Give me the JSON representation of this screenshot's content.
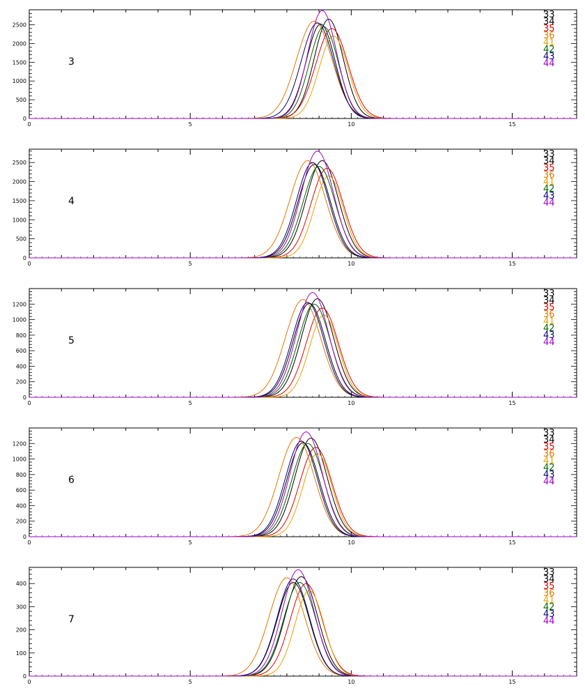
{
  "chart_data": [
    {
      "type": "line",
      "panel_label": "3",
      "xlim": [
        0,
        17
      ],
      "ylim": [
        0,
        2900
      ],
      "x_ticks": [
        0,
        5,
        10,
        15
      ],
      "y_ticks": [
        0,
        500,
        1000,
        1500,
        2000,
        2500
      ],
      "grid": false,
      "legend_placement": "top-right",
      "series": [
        {
          "name": "33",
          "color": "#000000",
          "peak_x": 9.05,
          "peak_y": 2520,
          "width": 0.45
        },
        {
          "name": "34",
          "color": "#000000",
          "peak_x": 9.3,
          "peak_y": 2650,
          "width": 0.45
        },
        {
          "name": "35",
          "color": "#e00000",
          "peak_x": 9.4,
          "peak_y": 2400,
          "width": 0.5
        },
        {
          "name": "36",
          "color": "#e07800",
          "peak_x": 8.85,
          "peak_y": 2600,
          "width": 0.55
        },
        {
          "name": "41",
          "color": "#e8a000",
          "peak_x": 9.45,
          "peak_y": 2200,
          "width": 0.45
        },
        {
          "name": "42",
          "color": "#006400",
          "peak_x": 9.15,
          "peak_y": 2450,
          "width": 0.45
        },
        {
          "name": "43",
          "color": "#00006e",
          "peak_x": 8.95,
          "peak_y": 2550,
          "width": 0.5
        },
        {
          "name": "44",
          "color": "#a000c8",
          "peak_x": 9.1,
          "peak_y": 2880,
          "width": 0.45
        }
      ]
    },
    {
      "type": "line",
      "panel_label": "4",
      "xlim": [
        0,
        17
      ],
      "ylim": [
        0,
        2850
      ],
      "x_ticks": [
        0,
        5,
        10,
        15
      ],
      "y_ticks": [
        0,
        500,
        1000,
        1500,
        2000,
        2500
      ],
      "grid": false,
      "legend_placement": "top-right",
      "series": [
        {
          "name": "33",
          "color": "#000000",
          "peak_x": 8.85,
          "peak_y": 2450,
          "width": 0.5
        },
        {
          "name": "34",
          "color": "#000000",
          "peak_x": 9.1,
          "peak_y": 2550,
          "width": 0.5
        },
        {
          "name": "35",
          "color": "#e00000",
          "peak_x": 9.25,
          "peak_y": 2350,
          "width": 0.5
        },
        {
          "name": "36",
          "color": "#e07800",
          "peak_x": 8.65,
          "peak_y": 2550,
          "width": 0.55
        },
        {
          "name": "41",
          "color": "#e8a000",
          "peak_x": 9.3,
          "peak_y": 2150,
          "width": 0.45
        },
        {
          "name": "42",
          "color": "#006400",
          "peak_x": 9.0,
          "peak_y": 2400,
          "width": 0.5
        },
        {
          "name": "43",
          "color": "#00006e",
          "peak_x": 8.8,
          "peak_y": 2500,
          "width": 0.5
        },
        {
          "name": "44",
          "color": "#a000c8",
          "peak_x": 8.95,
          "peak_y": 2800,
          "width": 0.5
        }
      ]
    },
    {
      "type": "line",
      "panel_label": "5",
      "xlim": [
        0,
        17
      ],
      "ylim": [
        0,
        1400
      ],
      "x_ticks": [
        0,
        5,
        10,
        15
      ],
      "y_ticks": [
        0,
        200,
        400,
        600,
        800,
        1000,
        1200
      ],
      "grid": false,
      "legend_placement": "top-right",
      "series": [
        {
          "name": "33",
          "color": "#000000",
          "peak_x": 8.7,
          "peak_y": 1210,
          "width": 0.5
        },
        {
          "name": "34",
          "color": "#000000",
          "peak_x": 8.95,
          "peak_y": 1270,
          "width": 0.5
        },
        {
          "name": "35",
          "color": "#e00000",
          "peak_x": 9.1,
          "peak_y": 1150,
          "width": 0.5
        },
        {
          "name": "36",
          "color": "#e07800",
          "peak_x": 8.5,
          "peak_y": 1260,
          "width": 0.55
        },
        {
          "name": "41",
          "color": "#e8a000",
          "peak_x": 9.15,
          "peak_y": 1060,
          "width": 0.45
        },
        {
          "name": "42",
          "color": "#006400",
          "peak_x": 8.85,
          "peak_y": 1200,
          "width": 0.5
        },
        {
          "name": "43",
          "color": "#00006e",
          "peak_x": 8.65,
          "peak_y": 1220,
          "width": 0.5
        },
        {
          "name": "44",
          "color": "#a000c8",
          "peak_x": 8.8,
          "peak_y": 1350,
          "width": 0.5
        }
      ]
    },
    {
      "type": "line",
      "panel_label": "6",
      "xlim": [
        0,
        17
      ],
      "ylim": [
        0,
        1400
      ],
      "x_ticks": [
        0,
        5,
        10,
        15
      ],
      "y_ticks": [
        0,
        200,
        400,
        600,
        800,
        1000,
        1200
      ],
      "grid": false,
      "legend_placement": "top-right",
      "series": [
        {
          "name": "33",
          "color": "#000000",
          "peak_x": 8.5,
          "peak_y": 1210,
          "width": 0.5
        },
        {
          "name": "34",
          "color": "#000000",
          "peak_x": 8.75,
          "peak_y": 1270,
          "width": 0.5
        },
        {
          "name": "35",
          "color": "#e00000",
          "peak_x": 8.9,
          "peak_y": 1150,
          "width": 0.5
        },
        {
          "name": "36",
          "color": "#e07800",
          "peak_x": 8.3,
          "peak_y": 1280,
          "width": 0.55
        },
        {
          "name": "41",
          "color": "#e8a000",
          "peak_x": 8.95,
          "peak_y": 1070,
          "width": 0.45
        },
        {
          "name": "42",
          "color": "#006400",
          "peak_x": 8.65,
          "peak_y": 1200,
          "width": 0.5
        },
        {
          "name": "43",
          "color": "#00006e",
          "peak_x": 8.45,
          "peak_y": 1230,
          "width": 0.5
        },
        {
          "name": "44",
          "color": "#a000c8",
          "peak_x": 8.6,
          "peak_y": 1350,
          "width": 0.5
        }
      ]
    },
    {
      "type": "line",
      "panel_label": "7",
      "xlim": [
        0,
        17
      ],
      "ylim": [
        0,
        470
      ],
      "x_ticks": [
        0,
        5,
        10,
        15
      ],
      "y_ticks": [
        0,
        100,
        200,
        300,
        400
      ],
      "grid": false,
      "legend_placement": "top-right",
      "series": [
        {
          "name": "33",
          "color": "#000000",
          "peak_x": 8.2,
          "peak_y": 405,
          "width": 0.5
        },
        {
          "name": "34",
          "color": "#000000",
          "peak_x": 8.45,
          "peak_y": 430,
          "width": 0.5
        },
        {
          "name": "35",
          "color": "#e00000",
          "peak_x": 8.6,
          "peak_y": 400,
          "width": 0.5
        },
        {
          "name": "36",
          "color": "#e07800",
          "peak_x": 8.0,
          "peak_y": 425,
          "width": 0.55
        },
        {
          "name": "41",
          "color": "#e8a000",
          "peak_x": 8.7,
          "peak_y": 370,
          "width": 0.45
        },
        {
          "name": "42",
          "color": "#006400",
          "peak_x": 8.4,
          "peak_y": 405,
          "width": 0.5
        },
        {
          "name": "43",
          "color": "#00006e",
          "peak_x": 8.2,
          "peak_y": 420,
          "width": 0.5
        },
        {
          "name": "44",
          "color": "#a000c8",
          "peak_x": 8.35,
          "peak_y": 460,
          "width": 0.5
        }
      ]
    }
  ]
}
